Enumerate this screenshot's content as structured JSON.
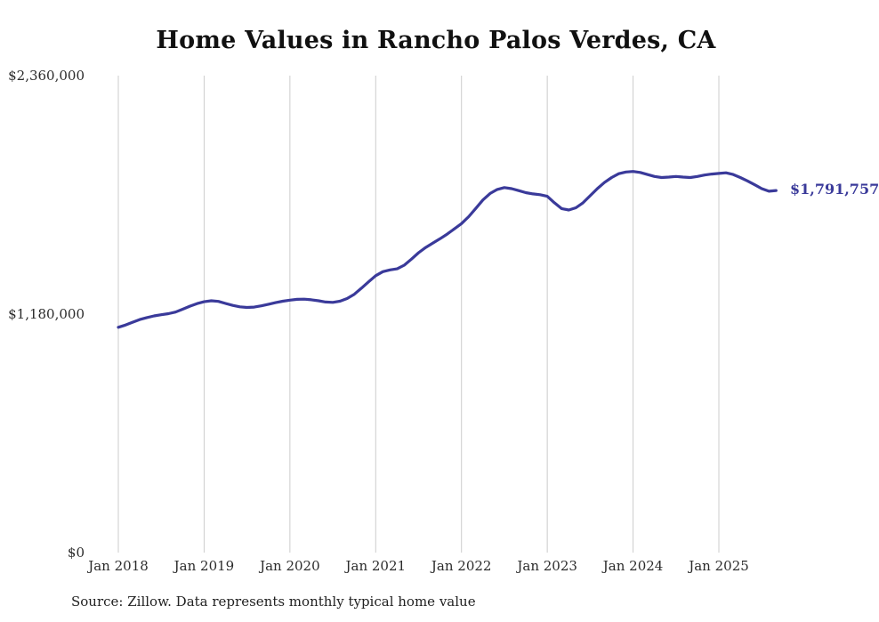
{
  "title": "Home Values in Rancho Palos Verdes, CA",
  "end_label": "$1,791,757",
  "source_note": "Source: Zillow. Data represents monthly typical home value",
  "colors": {
    "line": "#3a3a9a",
    "grid": "#cccccc",
    "title_text": "#111111",
    "axis_text": "#2b2b2b",
    "background": "#ffffff"
  },
  "chart_data": {
    "type": "line",
    "title": "Home Values in Rancho Palos Verdes, CA",
    "series_name": "Typical home value (monthly)",
    "x_start": "Jan 2018",
    "x_interval": "monthly",
    "x_tick_labels": [
      "Jan 2018",
      "Jan 2019",
      "Jan 2020",
      "Jan 2021",
      "Jan 2022",
      "Jan 2023",
      "Jan 2024",
      "Jan 2025"
    ],
    "x_tick_month_indices": [
      0,
      12,
      24,
      36,
      48,
      60,
      72,
      84
    ],
    "y_ticks": [
      {
        "label": "$0",
        "value": 0
      },
      {
        "label": "$1,180,000",
        "value": 1180000
      },
      {
        "label": "$2,360,000",
        "value": 2360000
      }
    ],
    "ylim": [
      0,
      2360000
    ],
    "grid": "vertical-only",
    "legend": "none",
    "final_value": 1791757,
    "values": [
      1115000,
      1126000,
      1140000,
      1153000,
      1163000,
      1171000,
      1177000,
      1182000,
      1190000,
      1204000,
      1219000,
      1232000,
      1241000,
      1246000,
      1243000,
      1233000,
      1223000,
      1216000,
      1213000,
      1215000,
      1221000,
      1229000,
      1237000,
      1244000,
      1249000,
      1253000,
      1254000,
      1251000,
      1246000,
      1240000,
      1238000,
      1244000,
      1257000,
      1278000,
      1308000,
      1340000,
      1370000,
      1390000,
      1399000,
      1404000,
      1422000,
      1452000,
      1484000,
      1510000,
      1532000,
      1553000,
      1576000,
      1602000,
      1628000,
      1662000,
      1703000,
      1745000,
      1777000,
      1797000,
      1806000,
      1801000,
      1791000,
      1781000,
      1775000,
      1771000,
      1763000,
      1731000,
      1702000,
      1695000,
      1706000,
      1731000,
      1766000,
      1801000,
      1831000,
      1856000,
      1875000,
      1883000,
      1886000,
      1881000,
      1871000,
      1861000,
      1856000,
      1858000,
      1861000,
      1858000,
      1856000,
      1861000,
      1868000,
      1873000,
      1876000,
      1879000,
      1871000,
      1856000,
      1839000,
      1820000,
      1801000,
      1788000,
      1791757
    ]
  }
}
